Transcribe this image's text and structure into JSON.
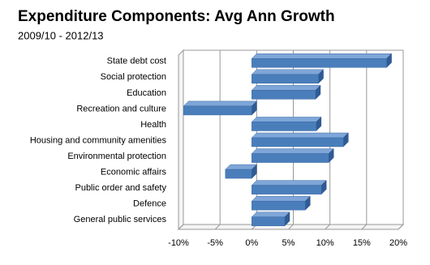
{
  "chart_data": {
    "type": "bar",
    "orientation": "horizontal",
    "title": "Expenditure Components:  Avg Ann Growth",
    "subtitle": "2009/10 - 2012/13",
    "categories": [
      "State debt cost",
      "Social protection",
      "Education",
      "Recreation and culture",
      "Health",
      "Housing and community amenities",
      "Environmental protection",
      "Economic affairs",
      "Public order and safety",
      "Defence",
      "General public services"
    ],
    "values": [
      18.4,
      9.1,
      8.7,
      -9.3,
      8.8,
      12.5,
      10.5,
      -3.6,
      9.5,
      7.3,
      4.5
    ],
    "color": "#4a7ebb",
    "xlim": [
      -10,
      20
    ],
    "xticks": [
      {
        "value": -10,
        "label": "-10%"
      },
      {
        "value": -5,
        "label": "-5%"
      },
      {
        "value": 0,
        "label": "0%"
      },
      {
        "value": 5,
        "label": "5%"
      },
      {
        "value": 10,
        "label": "10%"
      },
      {
        "value": 15,
        "label": "15%"
      },
      {
        "value": 20,
        "label": "20%"
      }
    ],
    "grid": true
  }
}
